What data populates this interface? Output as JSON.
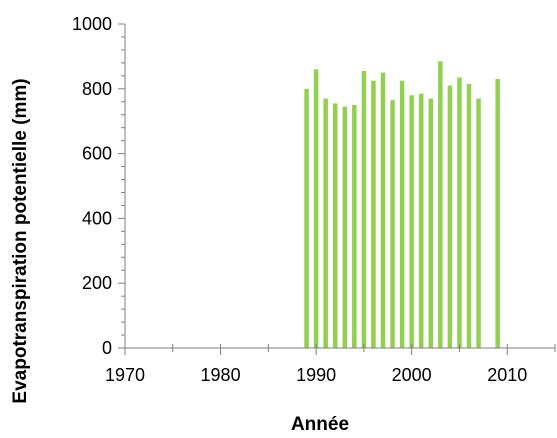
{
  "chart_data": {
    "type": "bar",
    "xlabel": "Année",
    "ylabel": "Evapotranspiration  potentielle (mm)",
    "xlim": [
      1970,
      2015
    ],
    "ylim": [
      0,
      1000
    ],
    "x_ticks": [
      1970,
      1980,
      1990,
      2000,
      2010
    ],
    "y_ticks": [
      0,
      200,
      400,
      600,
      800,
      1000
    ],
    "grid": false,
    "legend": "none",
    "bar_color": "#92d050",
    "x": [
      1989,
      1990,
      1991,
      1992,
      1993,
      1994,
      1995,
      1996,
      1997,
      1998,
      1999,
      2000,
      2001,
      2002,
      2003,
      2004,
      2005,
      2006,
      2007,
      2009
    ],
    "values": [
      800,
      860,
      770,
      755,
      745,
      750,
      855,
      825,
      850,
      765,
      825,
      780,
      785,
      770,
      885,
      810,
      835,
      815,
      770,
      830
    ]
  }
}
